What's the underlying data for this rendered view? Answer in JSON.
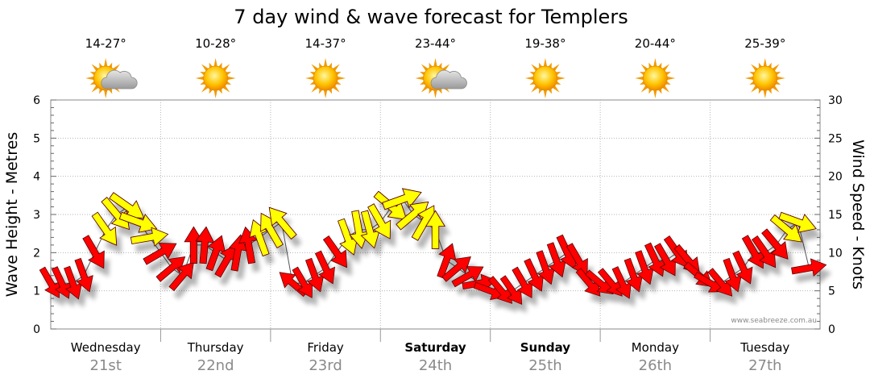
{
  "chart_data": {
    "type": "line",
    "title": "7 day wind & wave forecast for Templers",
    "ylabel_left": "Wave Height - Metres",
    "ylabel_right": "Wind Speed - Knots",
    "ylim_left": [
      0,
      6
    ],
    "ylim_right": [
      0,
      30
    ],
    "yticks_left": [
      "0",
      "1",
      "2",
      "3",
      "4",
      "5",
      "6"
    ],
    "yticks_right": [
      "0",
      "5",
      "10",
      "15",
      "20",
      "25",
      "30"
    ],
    "grid": true,
    "watermark": "www.seabreeze.com.au",
    "days": [
      {
        "name": "Wednesday",
        "date": "21st",
        "bold": false,
        "temp": "14-27°",
        "weather": "partly-cloudy"
      },
      {
        "name": "Thursday",
        "date": "22nd",
        "bold": false,
        "temp": "10-28°",
        "weather": "sunny"
      },
      {
        "name": "Friday",
        "date": "23rd",
        "bold": false,
        "temp": "14-37°",
        "weather": "sunny"
      },
      {
        "name": "Saturday",
        "date": "24th",
        "bold": true,
        "temp": "23-44°",
        "weather": "partly-cloudy"
      },
      {
        "name": "Sunday",
        "date": "25th",
        "bold": true,
        "temp": "19-38°",
        "weather": "sunny"
      },
      {
        "name": "Monday",
        "date": "26th",
        "bold": false,
        "temp": "20-44°",
        "weather": "sunny"
      },
      {
        "name": "Tuesday",
        "date": "27th",
        "bold": false,
        "temp": "25-39°",
        "weather": "sunny"
      }
    ],
    "series": [
      {
        "name": "Wind Speed - Knots",
        "axis": "right",
        "x": [
          0.0,
          0.1,
          0.2,
          0.3,
          0.4,
          0.5,
          0.6,
          0.7,
          0.8,
          0.9,
          1.0,
          1.1,
          1.2,
          1.3,
          1.4,
          1.5,
          1.6,
          1.7,
          1.8,
          1.9,
          2.0,
          2.1,
          2.2,
          2.3,
          2.4,
          2.5,
          2.6,
          2.7,
          2.8,
          2.9,
          3.0,
          3.1,
          3.2,
          3.3,
          3.4,
          3.5,
          3.6,
          3.7,
          3.8,
          3.9,
          4.0,
          4.1,
          4.2,
          4.3,
          4.4,
          4.5,
          4.6,
          4.7,
          4.8,
          4.9,
          5.0,
          5.1,
          5.2,
          5.3,
          5.4,
          5.5,
          5.6,
          5.7,
          5.8,
          5.9,
          6.0,
          6.1,
          6.2,
          6.3,
          6.4,
          6.5,
          6.6,
          6.7,
          6.8,
          6.9
        ],
        "values": [
          6,
          6,
          6,
          7,
          10,
          13,
          15,
          16,
          14,
          12,
          10,
          8,
          7,
          11,
          11,
          10,
          9,
          10,
          11,
          12,
          13,
          14,
          6,
          6,
          7,
          8,
          10,
          12,
          13,
          13,
          14,
          16,
          17,
          15,
          14,
          13,
          9,
          8,
          7,
          6,
          5,
          5,
          5,
          6,
          7,
          8,
          9,
          10,
          9,
          6,
          6,
          6,
          6,
          7,
          8,
          9,
          9,
          10,
          9,
          7,
          6,
          6,
          7,
          8,
          10,
          10,
          11,
          13,
          14,
          8
        ],
        "directions_deg": [
          240,
          245,
          250,
          250,
          240,
          235,
          230,
          215,
          200,
          170,
          150,
          140,
          130,
          90,
          95,
          110,
          120,
          100,
          80,
          70,
          60,
          50,
          40,
          240,
          250,
          245,
          235,
          250,
          260,
          255,
          240,
          220,
          160,
          140,
          120,
          90,
          110,
          140,
          150,
          170,
          200,
          230,
          235,
          240,
          245,
          250,
          250,
          245,
          240,
          230,
          220,
          230,
          245,
          250,
          250,
          245,
          240,
          235,
          230,
          220,
          210,
          230,
          250,
          245,
          240,
          235,
          230,
          220,
          200,
          170
        ],
        "colors": [
          "#ff0000",
          "#ffff00"
        ],
        "color_threshold": 12
      }
    ]
  }
}
